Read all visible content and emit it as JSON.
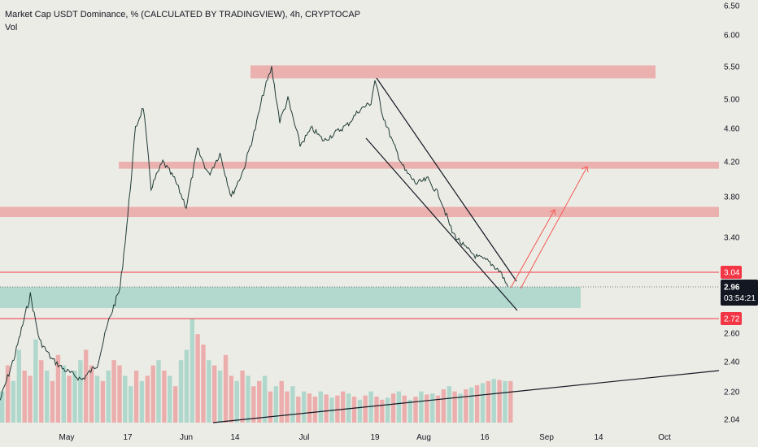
{
  "header": {
    "title": "Market Cap USDT Dominance, % (CALCULATED BY TRADINGVIEW), 4h, CRYPTOCAP",
    "subtitle": "Vol"
  },
  "colors": {
    "background": "#ecece6",
    "resistance_zone": "#eba7a5",
    "support_zone": "#a9d5c9",
    "price_line": "#1f3b36",
    "vol_up": "#a9d5c9",
    "vol_down": "#eba7a5",
    "red_level": "#f23645",
    "projection": "#f25c54",
    "trend_line": "#131722",
    "current_tag": "#131722"
  },
  "chart_data": {
    "type": "line",
    "series": [
      {
        "values": [
          {
            "x": "Apr 9",
            "y": 2.15
          },
          {
            "x": "Apr 14",
            "y": 2.45
          },
          {
            "x": "Apr 19",
            "y": 2.9
          },
          {
            "x": "Apr 22",
            "y": 2.55
          },
          {
            "x": "Apr 26",
            "y": 2.42
          },
          {
            "x": "Apr 30",
            "y": 2.35
          },
          {
            "x": "May 5",
            "y": 2.28
          },
          {
            "x": "May 9",
            "y": 2.38
          },
          {
            "x": "May 12",
            "y": 2.7
          },
          {
            "x": "May 15",
            "y": 2.95
          },
          {
            "x": "May 17",
            "y": 3.6
          },
          {
            "x": "May 19",
            "y": 4.6
          },
          {
            "x": "May 21",
            "y": 4.9
          },
          {
            "x": "May 23",
            "y": 3.9
          },
          {
            "x": "May 26",
            "y": 4.2
          },
          {
            "x": "May 29",
            "y": 4.0
          },
          {
            "x": "Jun 1",
            "y": 3.7
          },
          {
            "x": "Jun 4",
            "y": 4.35
          },
          {
            "x": "Jun 7",
            "y": 4.05
          },
          {
            "x": "Jun 10",
            "y": 4.3
          },
          {
            "x": "Jun 13",
            "y": 3.8
          },
          {
            "x": "Jun 16",
            "y": 4.1
          },
          {
            "x": "Jun 19",
            "y": 4.6
          },
          {
            "x": "Jun 21",
            "y": 5.1
          },
          {
            "x": "Jun 23",
            "y": 5.48
          },
          {
            "x": "Jun 25",
            "y": 4.7
          },
          {
            "x": "Jun 27",
            "y": 5.0
          },
          {
            "x": "Jun 30",
            "y": 4.4
          },
          {
            "x": "Jul 3",
            "y": 4.6
          },
          {
            "x": "Jul 6",
            "y": 4.45
          },
          {
            "x": "Jul 9",
            "y": 4.55
          },
          {
            "x": "Jul 12",
            "y": 4.65
          },
          {
            "x": "Jul 15",
            "y": 4.85
          },
          {
            "x": "Jul 18",
            "y": 4.95
          },
          {
            "x": "Jul 19",
            "y": 5.3
          },
          {
            "x": "Jul 21",
            "y": 4.8
          },
          {
            "x": "Jul 24",
            "y": 4.4
          },
          {
            "x": "Jul 27",
            "y": 4.1
          },
          {
            "x": "Jul 30",
            "y": 3.95
          },
          {
            "x": "Aug 2",
            "y": 4.0
          },
          {
            "x": "Aug 5",
            "y": 3.8
          },
          {
            "x": "Aug 8",
            "y": 3.45
          },
          {
            "x": "Aug 11",
            "y": 3.3
          },
          {
            "x": "Aug 14",
            "y": 3.2
          },
          {
            "x": "Aug 17",
            "y": 3.15
          },
          {
            "x": "Aug 20",
            "y": 3.05
          },
          {
            "x": "Aug 22",
            "y": 2.96
          }
        ]
      }
    ],
    "x_ticks": [
      "May",
      "17",
      "Jun",
      "14",
      "Jul",
      "19",
      "Aug",
      "16",
      "Sep",
      "14",
      "Oct"
    ],
    "y_ticks": [
      "6.50",
      "6.00",
      "5.50",
      "5.00",
      "4.60",
      "4.20",
      "3.80",
      "3.40",
      "3.04",
      "2.96",
      "2.72",
      "2.60",
      "2.40",
      "2.20",
      "2.04"
    ],
    "ylim": [
      2.04,
      6.5
    ],
    "zones": [
      {
        "kind": "resistance",
        "from": 5.32,
        "to": 5.52
      },
      {
        "kind": "resistance",
        "from": 4.12,
        "to": 4.2
      },
      {
        "kind": "resistance",
        "from": 3.6,
        "to": 3.7
      },
      {
        "kind": "support",
        "from": 2.8,
        "to": 2.96
      }
    ],
    "level_tags": [
      {
        "label": "3.04",
        "value": 3.04
      },
      {
        "label": "2.72",
        "value": 2.72
      }
    ],
    "current_price": {
      "label": "2.96",
      "countdown": "03:54:21",
      "value": 2.96
    },
    "volume": {
      "name": "Vol",
      "heights": [
        0.3,
        0.55,
        0.4,
        0.7,
        0.5,
        0.45,
        0.8,
        0.6,
        0.5,
        0.4,
        0.65,
        0.55,
        0.45,
        0.5,
        0.6,
        0.7,
        0.55,
        0.45,
        0.4,
        0.5,
        0.6,
        0.55,
        0.45,
        0.35,
        0.5,
        0.4,
        0.45,
        0.55,
        0.6,
        0.5,
        0.45,
        0.35,
        0.6,
        0.7,
        1.0,
        0.85,
        0.75,
        0.6,
        0.55,
        0.5,
        0.65,
        0.45,
        0.4,
        0.5,
        0.45,
        0.35,
        0.4,
        0.45,
        0.3,
        0.35,
        0.4,
        0.3,
        0.35,
        0.25,
        0.3,
        0.28,
        0.25,
        0.3,
        0.27,
        0.24,
        0.26,
        0.3,
        0.28,
        0.25,
        0.22,
        0.26,
        0.3,
        0.25,
        0.22,
        0.24,
        0.28,
        0.3,
        0.26,
        0.22,
        0.25,
        0.3,
        0.27,
        0.28,
        0.26,
        0.32,
        0.35,
        0.3,
        0.28,
        0.32,
        0.34,
        0.36,
        0.38,
        0.4,
        0.42,
        0.41,
        0.4,
        0.4
      ],
      "up_flags": [
        1,
        0,
        1,
        1,
        0,
        0,
        1,
        0,
        1,
        0,
        0,
        1,
        0,
        1,
        1,
        0,
        0,
        1,
        0,
        1,
        0,
        0,
        1,
        1,
        0,
        1,
        0,
        0,
        1,
        0,
        1,
        0,
        1,
        1,
        1,
        0,
        0,
        1,
        0,
        1,
        0,
        0,
        1,
        0,
        1,
        0,
        0,
        1,
        0,
        1,
        0,
        0,
        1,
        0,
        1,
        0,
        0,
        1,
        0,
        1,
        0,
        0,
        1,
        0,
        1,
        0,
        1,
        0,
        0,
        1,
        0,
        1,
        0,
        1,
        0,
        1,
        0,
        1,
        0,
        0,
        1,
        0,
        1,
        0,
        1,
        0,
        1,
        0,
        1,
        0,
        1,
        0
      ]
    }
  }
}
